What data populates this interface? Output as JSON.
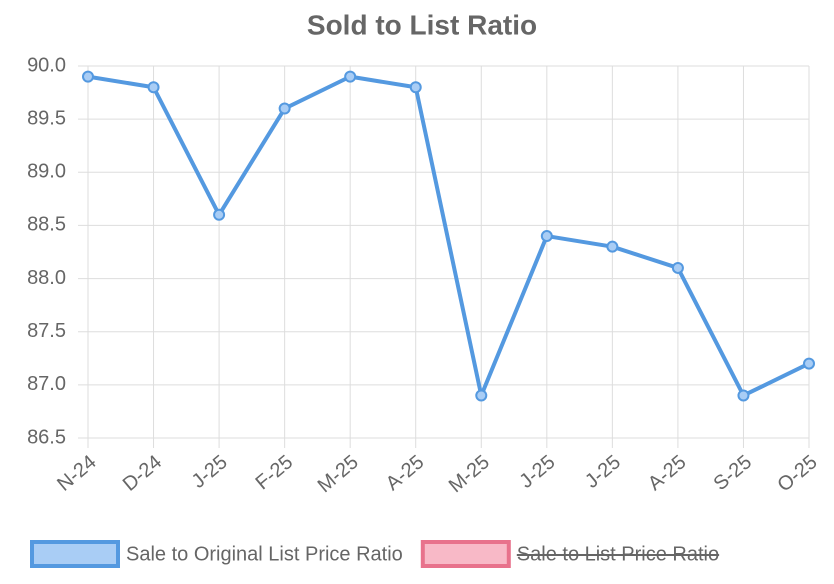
{
  "chart_data": {
    "type": "line",
    "title": "Sold to List Ratio",
    "categories": [
      "N-24",
      "D-24",
      "J-25",
      "F-25",
      "M-25",
      "A-25",
      "M-25",
      "J-25",
      "J-25",
      "A-25",
      "S-25",
      "O-25"
    ],
    "series": [
      {
        "name": "Sale to Original List Price Ratio",
        "color": "#5499e0",
        "fill": "#a9cdf5",
        "values": [
          89.9,
          89.8,
          88.6,
          89.6,
          89.9,
          89.8,
          86.9,
          88.4,
          88.3,
          88.1,
          86.9,
          87.2
        ]
      }
    ],
    "hidden_series": [
      {
        "name": "Sale to List Price Ratio",
        "color": "#e8728c",
        "fill": "#f8b9c7",
        "hidden": true
      }
    ],
    "ylim": [
      86.5,
      90
    ],
    "yticks": [
      86.5,
      {
        "value": 87,
        "label": "87.0"
      },
      87.5,
      {
        "value": 88,
        "label": "88.0"
      },
      88.5,
      {
        "value": 89,
        "label": "89.0"
      },
      89.5,
      {
        "value": 90,
        "label": "90.0"
      }
    ],
    "grid": true,
    "legend": "bottom"
  }
}
